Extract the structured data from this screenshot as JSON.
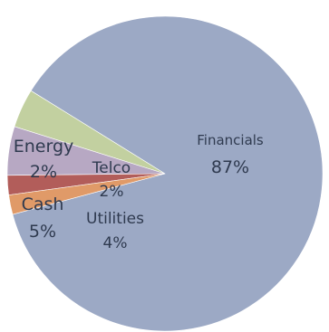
{
  "chart_data": {
    "type": "pie",
    "title": "",
    "slices": [
      {
        "label": "Financials",
        "value": 87,
        "value_label": "87%",
        "color": "#9ca9c5"
      },
      {
        "label": "Utilities",
        "value": 4,
        "value_label": "4%",
        "color": "#c2d0a0"
      },
      {
        "label": "Cash",
        "value": 5,
        "value_label": "5%",
        "color": "#b7a8c3"
      },
      {
        "label": "Telco",
        "value": 2,
        "value_label": "2%",
        "color": "#b25d5a"
      },
      {
        "label": "Energy",
        "value": 2,
        "value_label": "2%",
        "color": "#e09a68"
      }
    ],
    "legend": "none",
    "data_labels": "category and percent on slices"
  }
}
